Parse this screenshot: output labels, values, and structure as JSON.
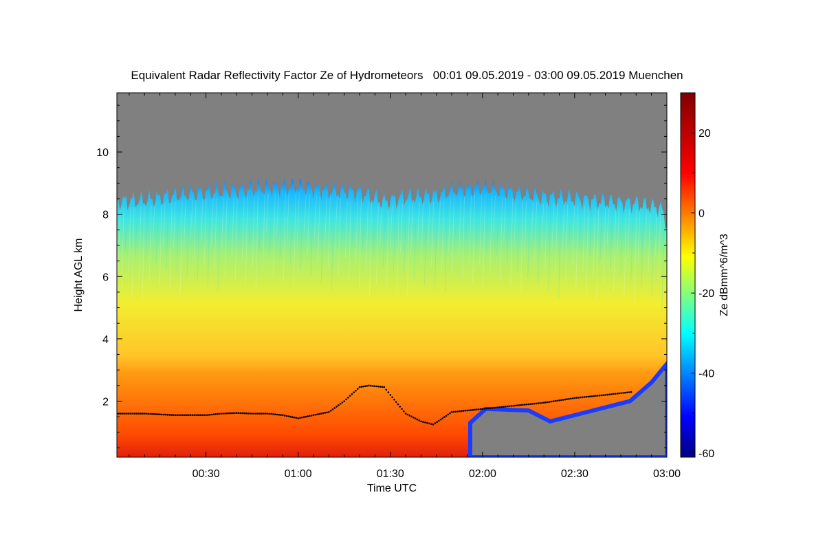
{
  "chart_data": {
    "type": "heatmap",
    "title": "Equivalent Radar Reflectivity Factor Ze of Hydrometeors   00:01 09.05.2019 - 03:00 09.05.2019 Muenchen",
    "xlabel": "Time UTC",
    "ylabel": "Height AGL km",
    "colorbar_label": "Ze dBmm^6/m^3",
    "x_range_minutes": [
      1,
      180
    ],
    "y_range_km": [
      0.2,
      11.9
    ],
    "color_range_dbz": [
      -61,
      30
    ],
    "colormap": "jet",
    "no_data_color": "#808080",
    "x_ticks": [
      {
        "minutes": 30,
        "label": "00:30"
      },
      {
        "minutes": 60,
        "label": "01:00"
      },
      {
        "minutes": 90,
        "label": "01:30"
      },
      {
        "minutes": 120,
        "label": "02:00"
      },
      {
        "minutes": 150,
        "label": "02:30"
      },
      {
        "minutes": 180,
        "label": "03:00"
      }
    ],
    "y_ticks": [
      {
        "km": 2,
        "label": "2"
      },
      {
        "km": 4,
        "label": "4"
      },
      {
        "km": 6,
        "label": "6"
      },
      {
        "km": 8,
        "label": "8"
      },
      {
        "km": 10,
        "label": "10"
      }
    ],
    "colorbar_ticks": [
      {
        "dbz": 20,
        "label": "20"
      },
      {
        "dbz": 0,
        "label": "0"
      },
      {
        "dbz": -20,
        "label": "-20"
      },
      {
        "dbz": -40,
        "label": "-40"
      },
      {
        "dbz": -60,
        "label": "-60"
      }
    ],
    "echo_top_km": [
      [
        1,
        8.4
      ],
      [
        10,
        8.45
      ],
      [
        20,
        8.6
      ],
      [
        30,
        8.7
      ],
      [
        40,
        8.75
      ],
      [
        50,
        8.85
      ],
      [
        60,
        8.9
      ],
      [
        70,
        8.75
      ],
      [
        80,
        8.7
      ],
      [
        88,
        8.4
      ],
      [
        95,
        8.55
      ],
      [
        105,
        8.6
      ],
      [
        110,
        8.75
      ],
      [
        120,
        8.85
      ],
      [
        130,
        8.7
      ],
      [
        140,
        8.55
      ],
      [
        150,
        8.5
      ],
      [
        160,
        8.4
      ],
      [
        170,
        8.35
      ],
      [
        178,
        8.2
      ],
      [
        180,
        7.7
      ]
    ],
    "cloud_base_km": [
      [
        1,
        1.6
      ],
      [
        10,
        1.6
      ],
      [
        20,
        1.55
      ],
      [
        25,
        1.55
      ],
      [
        30,
        1.55
      ],
      [
        35,
        1.6
      ],
      [
        40,
        1.62
      ],
      [
        45,
        1.6
      ],
      [
        50,
        1.6
      ],
      [
        55,
        1.55
      ],
      [
        60,
        1.45
      ],
      [
        65,
        1.55
      ],
      [
        70,
        1.65
      ],
      [
        75,
        2.0
      ],
      [
        80,
        2.45
      ],
      [
        83,
        2.5
      ],
      [
        88,
        2.45
      ],
      [
        90,
        2.2
      ],
      [
        95,
        1.6
      ],
      [
        100,
        1.35
      ],
      [
        104,
        1.25
      ],
      [
        110,
        1.65
      ],
      [
        120,
        1.75
      ],
      [
        130,
        1.85
      ],
      [
        140,
        1.95
      ],
      [
        150,
        2.1
      ],
      [
        160,
        2.2
      ],
      [
        169,
        2.3
      ]
    ]
  }
}
